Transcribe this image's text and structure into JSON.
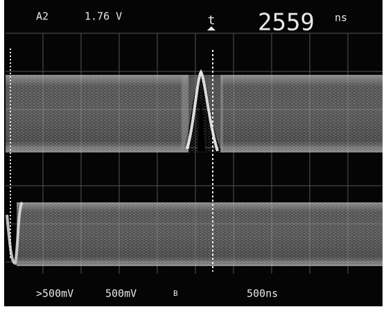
{
  "readout": {
    "channel": "A2",
    "voltage": "1.76 V",
    "cursor": "t",
    "time": "2559",
    "time_unit": "ns"
  },
  "footer": {
    "trigger_level": ">500mV",
    "channel_scale": "500mV",
    "channel_label": "B",
    "timebase": "500ns"
  }
}
